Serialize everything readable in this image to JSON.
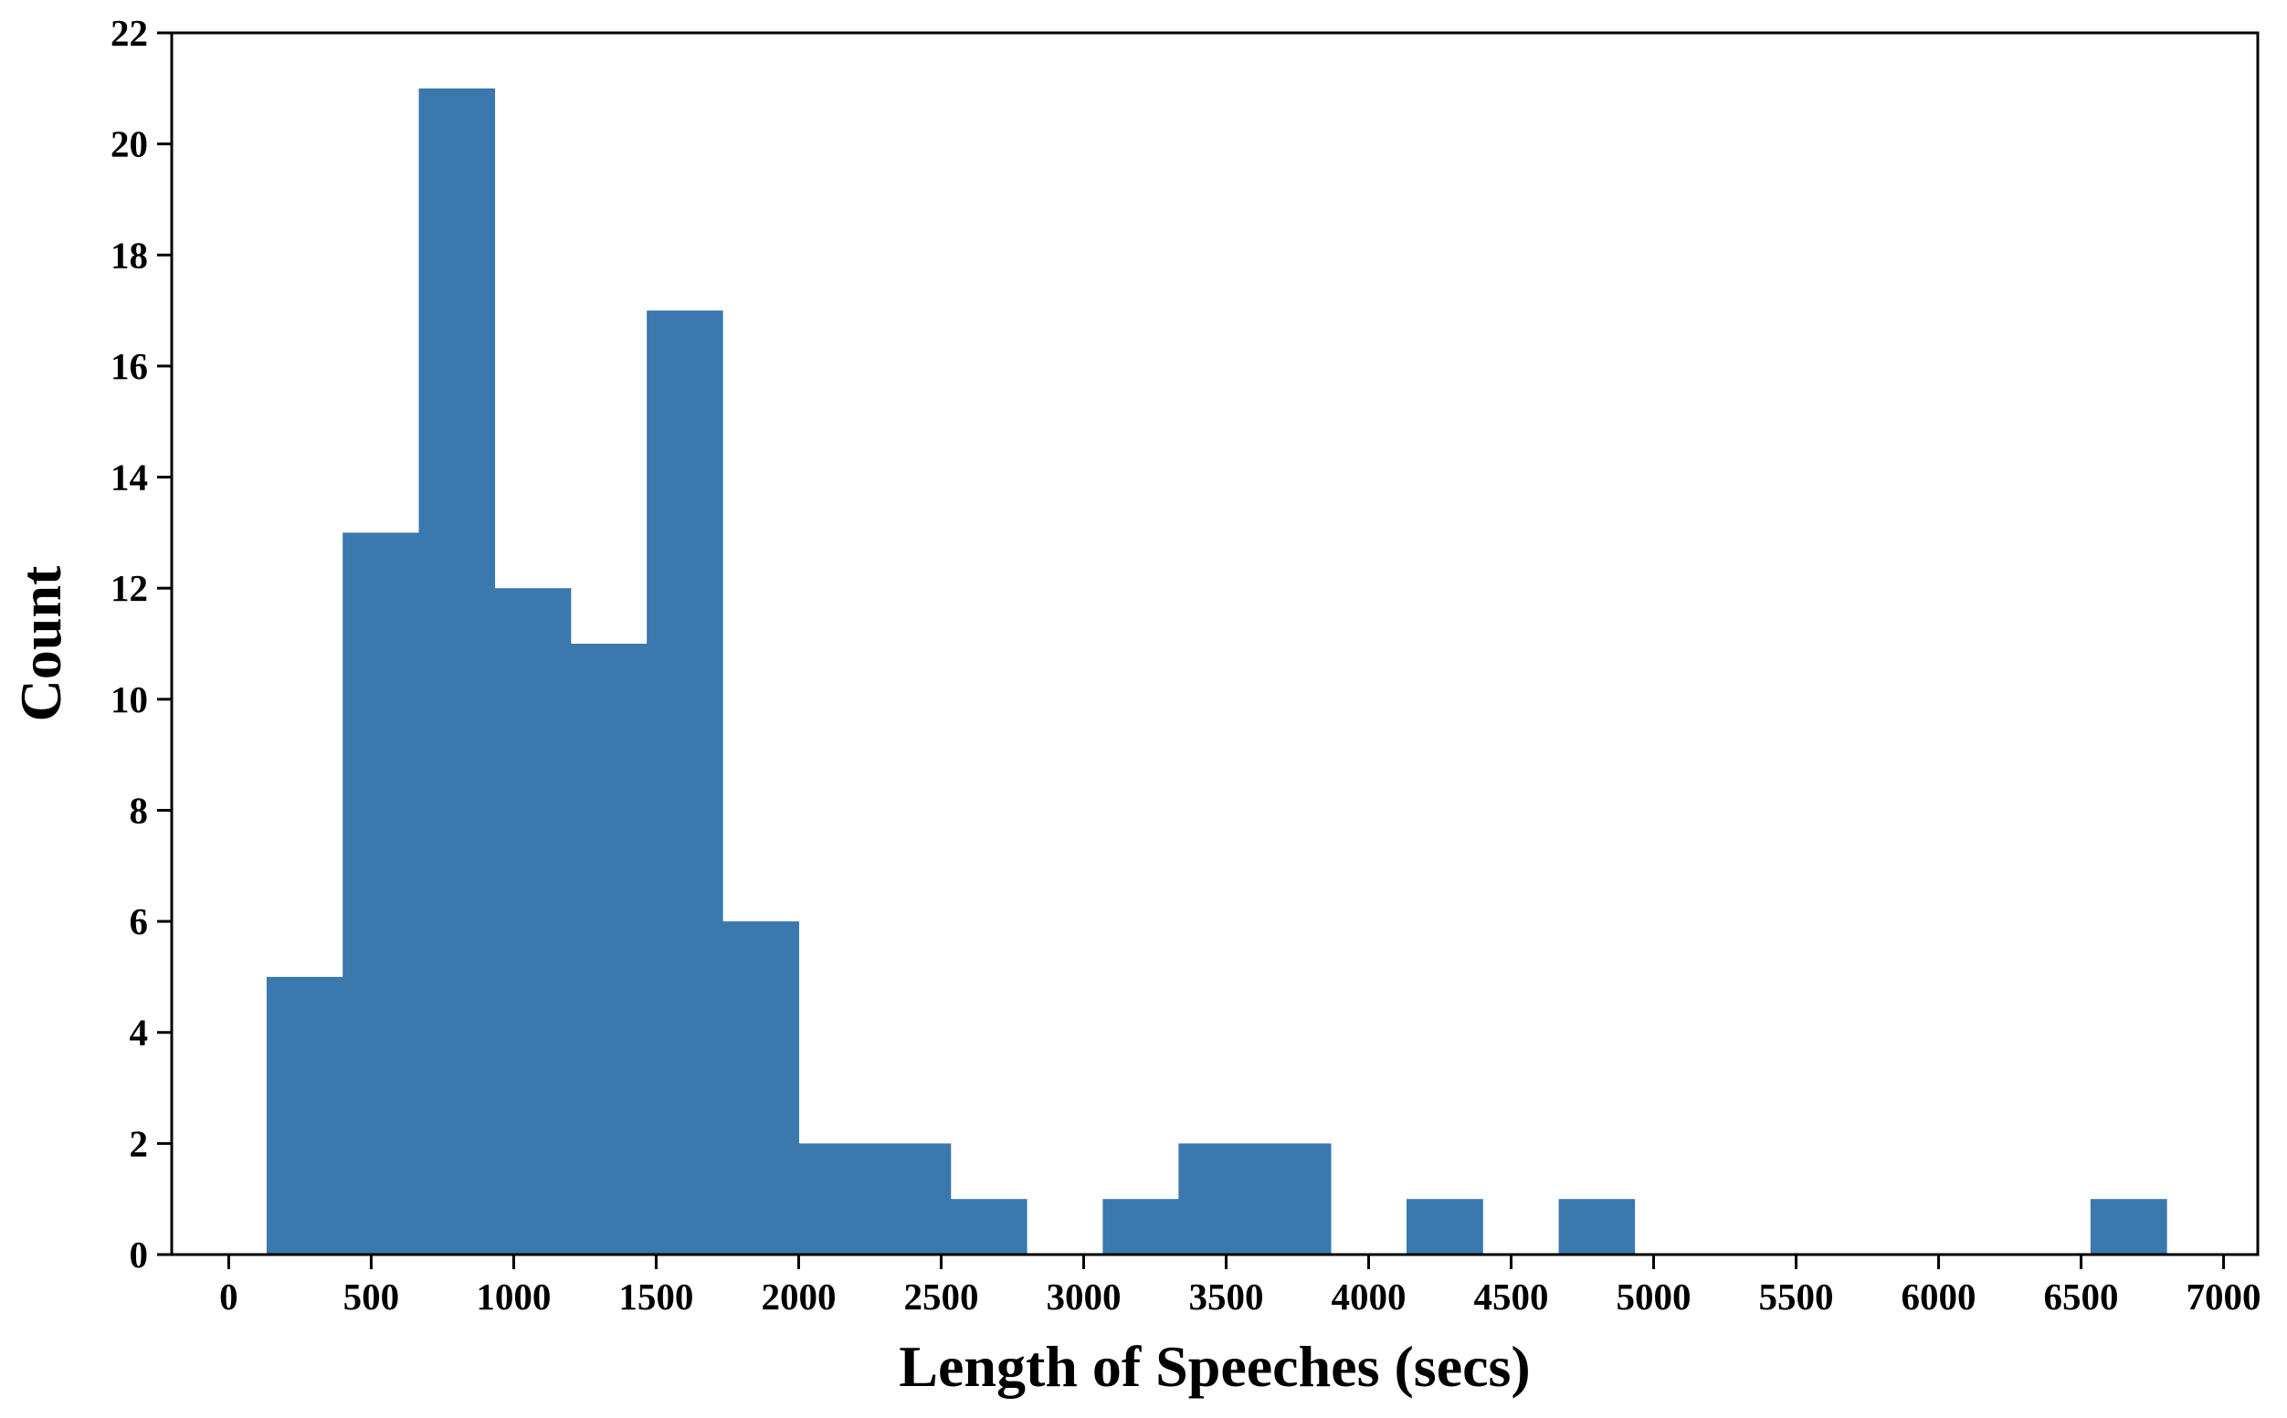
{
  "chart_data": {
    "type": "bar",
    "subtype": "histogram",
    "title": "",
    "xlabel": "Length of Speeches (secs)",
    "ylabel": "Count",
    "xlim": [
      -200,
      7120
    ],
    "ylim": [
      0,
      22
    ],
    "xticks": [
      0,
      500,
      1000,
      1500,
      2000,
      2500,
      3000,
      3500,
      4000,
      4500,
      5000,
      5500,
      6000,
      6500,
      7000
    ],
    "yticks": [
      0,
      2,
      4,
      6,
      8,
      10,
      12,
      14,
      16,
      18,
      20,
      22
    ],
    "bin_edges": [
      133,
      400,
      667,
      933,
      1200,
      1467,
      1733,
      2000,
      2267,
      2533,
      2800,
      3067,
      3333,
      3600,
      3867,
      4133,
      4400,
      4667,
      4933,
      5200,
      5467,
      5733,
      6000,
      6267,
      6533,
      6800
    ],
    "counts": [
      5,
      13,
      21,
      12,
      11,
      17,
      6,
      2,
      2,
      1,
      0,
      1,
      2,
      2,
      0,
      1,
      0,
      1,
      0,
      0,
      0,
      0,
      0,
      0,
      1
    ],
    "grid": false,
    "legend": "none",
    "bar_color": "#3a78ae"
  }
}
